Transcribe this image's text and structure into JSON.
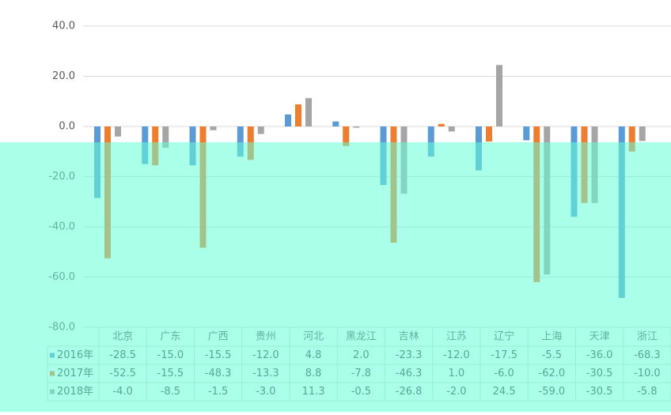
{
  "chart_data": {
    "type": "bar",
    "categories": [
      "北京",
      "广东",
      "广西",
      "贵州",
      "河北",
      "黑龙江",
      "吉林",
      "江苏",
      "辽宁",
      "上海",
      "天津",
      "浙江"
    ],
    "series": [
      {
        "name": "2016年",
        "color": "#5b9bd5",
        "values": [
          -28.5,
          -15.0,
          -15.5,
          -12.0,
          4.8,
          2.0,
          -23.3,
          -12.0,
          -17.5,
          -5.5,
          -36.0,
          -68.3
        ],
        "value_labels": [
          "-28.5",
          "-15.0",
          "-15.5",
          "-12.0",
          "4.8",
          "2.0",
          "-23.3",
          "-12.0",
          "-17.5",
          "-5.5",
          "-36.0",
          "-68.3"
        ]
      },
      {
        "name": "2017年",
        "color": "#ed7d31",
        "values": [
          -52.5,
          -15.5,
          -48.3,
          -13.3,
          8.8,
          -7.8,
          -46.3,
          1.0,
          -6.0,
          -62.0,
          -30.5,
          -10.0
        ],
        "value_labels": [
          "-52.5",
          "-15.5",
          "-48.3",
          "-13.3",
          "8.8",
          "-7.8",
          "-46.3",
          "1.0",
          "-6.0",
          "-62.0",
          "-30.5",
          "-10.0"
        ]
      },
      {
        "name": "2018年",
        "color": "#a5a5a5",
        "values": [
          -4.0,
          -8.5,
          -1.5,
          -3.0,
          11.3,
          -0.5,
          -26.8,
          -2.0,
          24.5,
          -59.0,
          -30.5,
          -5.8
        ],
        "value_labels": [
          "-4.0",
          "-8.5",
          "-1.5",
          "-3.0",
          "11.3",
          "-0.5",
          "-26.8",
          "-2.0",
          "24.5",
          "-59.0",
          "-30.5",
          "-5.8"
        ]
      }
    ],
    "ylim": [
      -80,
      40
    ],
    "yticks": [
      {
        "value": 40,
        "label": "40.0"
      },
      {
        "value": 20,
        "label": "20.0"
      },
      {
        "value": 0,
        "label": "0.0"
      },
      {
        "value": -20,
        "label": "-20.0"
      },
      {
        "value": -40,
        "label": "-40.0"
      },
      {
        "value": -60,
        "label": "-60.0"
      },
      {
        "value": -80,
        "label": "-80.0"
      }
    ],
    "grid": true
  }
}
